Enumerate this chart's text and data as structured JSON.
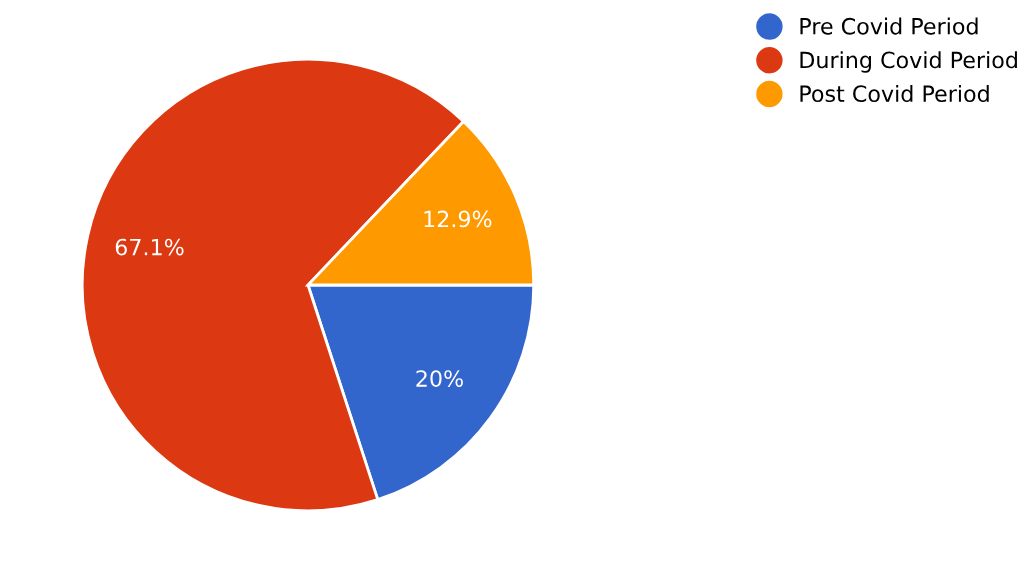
{
  "chart_data": {
    "type": "pie",
    "categories": [
      "Pre Covid Period",
      "During Covid Period",
      "Post Covid Period"
    ],
    "values": [
      20,
      67.1,
      12.9
    ],
    "value_labels": [
      "20%",
      "67.1%",
      "12.9%"
    ],
    "colors": [
      "#3366cc",
      "#dc3912",
      "#ff9900"
    ],
    "legend": "top right"
  }
}
